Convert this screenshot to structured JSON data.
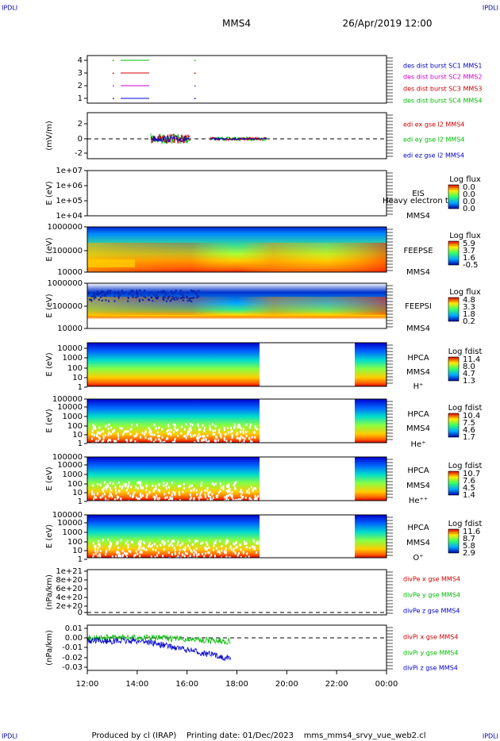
{
  "header": {
    "corner_left": "IPDLI",
    "corner_right": "IPDLI",
    "spacecraft": "MMS4",
    "date": "26/Apr/2019 12:00"
  },
  "panels": [
    {
      "ylabel": "",
      "yticks": [
        "4",
        "3",
        "2",
        "1"
      ],
      "labels": [
        {
          "text": "des dist burst SC1 MMS1",
          "color": "#0000cc"
        },
        {
          "text": "des dist burst SC2 MMS2",
          "color": "#cc00cc"
        },
        {
          "text": "des dist burst SC3 MMS3",
          "color": "#cc0000"
        },
        {
          "text": "des dist burst SC4 MMS4",
          "color": "#00bb00"
        }
      ]
    },
    {
      "ylabel": "(mV/m)",
      "yticks": [
        "2",
        "0",
        "-2"
      ],
      "labels": [
        {
          "text": "edi ex gse l2 MMS4",
          "color": "#cc0000"
        },
        {
          "text": "edi ey gse l2 MMS4",
          "color": "#00bb00"
        },
        {
          "text": "edi ez gse l2 MMS4",
          "color": "#0000cc"
        }
      ]
    },
    {
      "ylabel": "E (eV)",
      "yticks": [
        "1e+07",
        "1e+06",
        "1e+05",
        "1e+04"
      ],
      "labels": [
        {
          "text": "EIS"
        },
        {
          "text": "Heavy electron to"
        },
        {
          "text": "MMS4"
        }
      ],
      "colorbar": {
        "title": "Log flux",
        "ticks": [
          "0.0",
          "0.0",
          "0.0",
          "0.0"
        ]
      }
    },
    {
      "ylabel": "E (eV)",
      "yticks": [
        "1000000",
        "100000",
        "10000"
      ],
      "labels": [
        {
          "text": "FEEPSE"
        },
        {
          "text": "MMS4"
        }
      ],
      "colorbar": {
        "title": "Log flux",
        "ticks": [
          "5.9",
          "3.7",
          "1.6",
          "-0.5"
        ]
      }
    },
    {
      "ylabel": "E (eV)",
      "yticks": [
        "1000000",
        "100000",
        "10000"
      ],
      "labels": [
        {
          "text": "FEEPSI"
        },
        {
          "text": "MMS4"
        }
      ],
      "colorbar": {
        "title": "Log flux",
        "ticks": [
          "4.8",
          "3.3",
          "1.8",
          "0.2"
        ]
      }
    },
    {
      "ylabel": "E (eV)",
      "yticks": [
        "10000",
        "1000",
        "100",
        "10",
        "1"
      ],
      "labels": [
        {
          "text": "HPCA"
        },
        {
          "text": "MMS4"
        },
        {
          "text": "H⁺"
        }
      ],
      "colorbar": {
        "title": "Log fdist",
        "ticks": [
          "11.4",
          "8.0",
          "4.7",
          "1.3"
        ]
      }
    },
    {
      "ylabel": "E (eV)",
      "yticks": [
        "100000",
        "10000",
        "1000",
        "100",
        "10",
        "1"
      ],
      "labels": [
        {
          "text": "HPCA"
        },
        {
          "text": "MMS4"
        },
        {
          "text": "He⁺"
        }
      ],
      "colorbar": {
        "title": "Log fdist",
        "ticks": [
          "10.4",
          "7.5",
          "4.6",
          "1.7"
        ]
      }
    },
    {
      "ylabel": "E (eV)",
      "yticks": [
        "100000",
        "10000",
        "1000",
        "100",
        "10",
        "1"
      ],
      "labels": [
        {
          "text": "HPCA"
        },
        {
          "text": "MMS4"
        },
        {
          "text": "He⁺⁺"
        }
      ],
      "colorbar": {
        "title": "Log fdist",
        "ticks": [
          "10.7",
          "7.6",
          "4.5",
          "1.4"
        ]
      }
    },
    {
      "ylabel": "E (eV)",
      "yticks": [
        "100000",
        "10000",
        "1000",
        "100",
        "10",
        "1"
      ],
      "labels": [
        {
          "text": "HPCA"
        },
        {
          "text": "MMS4"
        },
        {
          "text": "O⁺"
        }
      ],
      "colorbar": {
        "title": "Log fdist",
        "ticks": [
          "11.6",
          "8.7",
          "5.8",
          "2.9"
        ]
      }
    },
    {
      "ylabel": "(nPa/km)",
      "yticks": [
        "1e+21",
        "8e+20",
        "6e+20",
        "4e+20",
        "2e+20",
        "0"
      ],
      "labels": [
        {
          "text": "divPe x gse MMS4",
          "color": "#cc0000"
        },
        {
          "text": "divPe y gse MMS4",
          "color": "#00bb00"
        },
        {
          "text": "divPe z gse MMS4",
          "color": "#0000cc"
        }
      ]
    },
    {
      "ylabel": "(nPa/km)",
      "yticks": [
        "0.01",
        "0.00",
        "-0.01",
        "-0.02",
        "-0.03"
      ],
      "labels": [
        {
          "text": "divPi x gse MMS4",
          "color": "#cc0000"
        },
        {
          "text": "divPi y gse MMS4",
          "color": "#00bb00"
        },
        {
          "text": "divPi z gse MMS4",
          "color": "#0000cc"
        }
      ]
    }
  ],
  "xticks": [
    "12:00",
    "14:00",
    "16:00",
    "18:00",
    "20:00",
    "22:00",
    "00:00"
  ],
  "footer": {
    "text": "Produced by cl (IRAP)    Printing date: 01/Dec/2023    mms_mms4_srvy_vue_web2.cl",
    "corner_left": "IPDLI",
    "corner_right": "IPDLI"
  }
}
